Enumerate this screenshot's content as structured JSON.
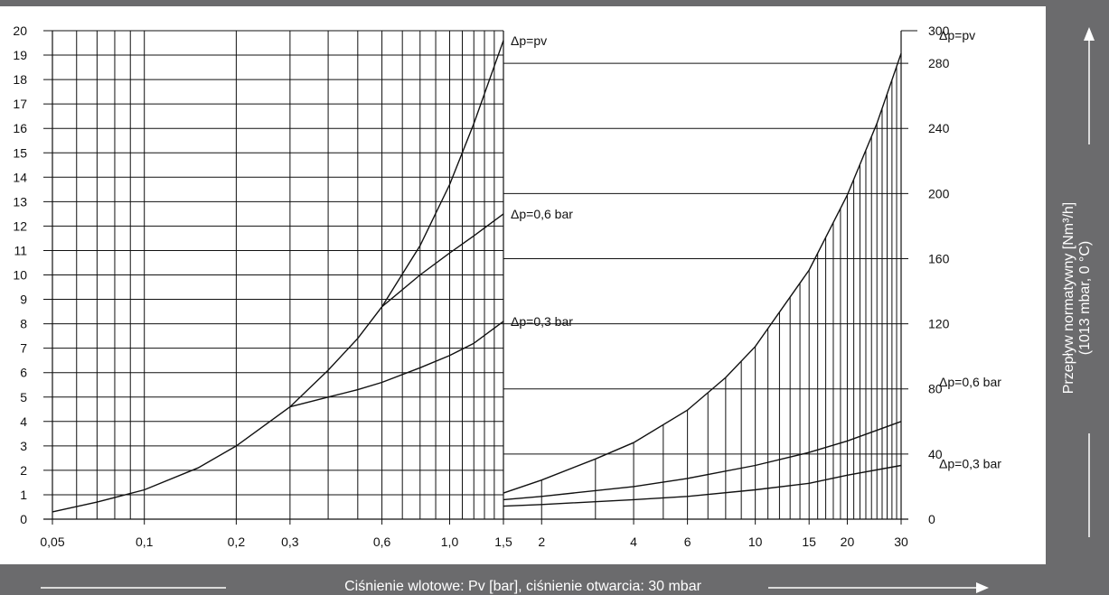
{
  "colors": {
    "background": "#6b6b6d",
    "plot": "#ffffff",
    "ink": "#111111",
    "label_text": "#ffffff"
  },
  "texts": {
    "xlabel": "Ciśnienie wlotowe: Pv [bar], ciśnienie otwarcia: 30 mbar",
    "ylabel_right_line1": "Przepływ normatywny [Nm³/h]",
    "ylabel_right_line2": "(1013 mbar, 0 °C)"
  },
  "chart_data": [
    {
      "type": "line",
      "panel": "left",
      "x_scale": "log",
      "xlim": [
        0.05,
        1.5
      ],
      "ylim": [
        0,
        20
      ],
      "x_ticks": [
        0.05,
        0.1,
        0.2,
        0.3,
        0.6,
        1.0,
        1.5
      ],
      "x_tick_labels": [
        "0,05",
        "0,1",
        "0,2",
        "0,3",
        "0,6",
        "1,0",
        "1,5"
      ],
      "y_ticks": [
        0,
        1,
        2,
        3,
        4,
        5,
        6,
        7,
        8,
        9,
        10,
        11,
        12,
        13,
        14,
        15,
        16,
        17,
        18,
        19,
        20
      ],
      "y_tick_labels": [
        "0",
        "1",
        "2",
        "3",
        "4",
        "5",
        "6",
        "7",
        "8",
        "9",
        "10",
        "11",
        "12",
        "13",
        "14",
        "15",
        "16",
        "17",
        "18",
        "19",
        "20"
      ],
      "grid": true,
      "series": [
        {
          "name": "Δp=pv",
          "x": [
            0.05,
            0.07,
            0.1,
            0.15,
            0.2,
            0.3,
            0.4,
            0.5,
            0.6,
            0.8,
            1.0,
            1.2,
            1.5
          ],
          "y": [
            0.3,
            0.7,
            1.2,
            2.1,
            3.0,
            4.6,
            6.1,
            7.4,
            8.7,
            11.2,
            13.7,
            16.2,
            19.6
          ]
        },
        {
          "name": "Δp=0,6 bar",
          "x": [
            0.6,
            0.8,
            1.0,
            1.2,
            1.5
          ],
          "y": [
            8.7,
            10.0,
            10.9,
            11.6,
            12.5
          ]
        },
        {
          "name": "Δp=0,3 bar",
          "x": [
            0.3,
            0.4,
            0.5,
            0.6,
            0.8,
            1.0,
            1.2,
            1.5
          ],
          "y": [
            4.6,
            5.0,
            5.3,
            5.6,
            6.2,
            6.7,
            7.2,
            8.1
          ]
        }
      ]
    },
    {
      "type": "line",
      "panel": "right",
      "x_scale": "log",
      "xlim": [
        1.5,
        30
      ],
      "ylim": [
        0,
        300
      ],
      "x_ticks": [
        2,
        4,
        6,
        10,
        15,
        20,
        30
      ],
      "x_tick_labels": [
        "2",
        "4",
        "6",
        "10",
        "15",
        "20",
        "30"
      ],
      "y_ticks": [
        0,
        40,
        80,
        120,
        160,
        200,
        240,
        280,
        300
      ],
      "y_tick_labels": [
        "0",
        "40",
        "80",
        "120",
        "160",
        "200",
        "240",
        "280",
        "300"
      ],
      "grid": true,
      "series": [
        {
          "name": "Δp=pv",
          "x": [
            1.5,
            2,
            3,
            4,
            6,
            8,
            10,
            15,
            20,
            25,
            30
          ],
          "y": [
            16,
            24,
            37,
            47,
            67,
            87,
            106,
            153,
            199,
            243,
            286
          ]
        },
        {
          "name": "Δp=0,6 bar",
          "x": [
            1.5,
            2,
            4,
            6,
            10,
            15,
            20,
            30
          ],
          "y": [
            12,
            14,
            20,
            25,
            33,
            41,
            48,
            60
          ]
        },
        {
          "name": "Δp=0,3 bar",
          "x": [
            1.5,
            2,
            4,
            6,
            10,
            15,
            20,
            30
          ],
          "y": [
            8,
            9,
            12,
            14,
            18,
            22,
            27,
            33
          ]
        }
      ]
    }
  ]
}
